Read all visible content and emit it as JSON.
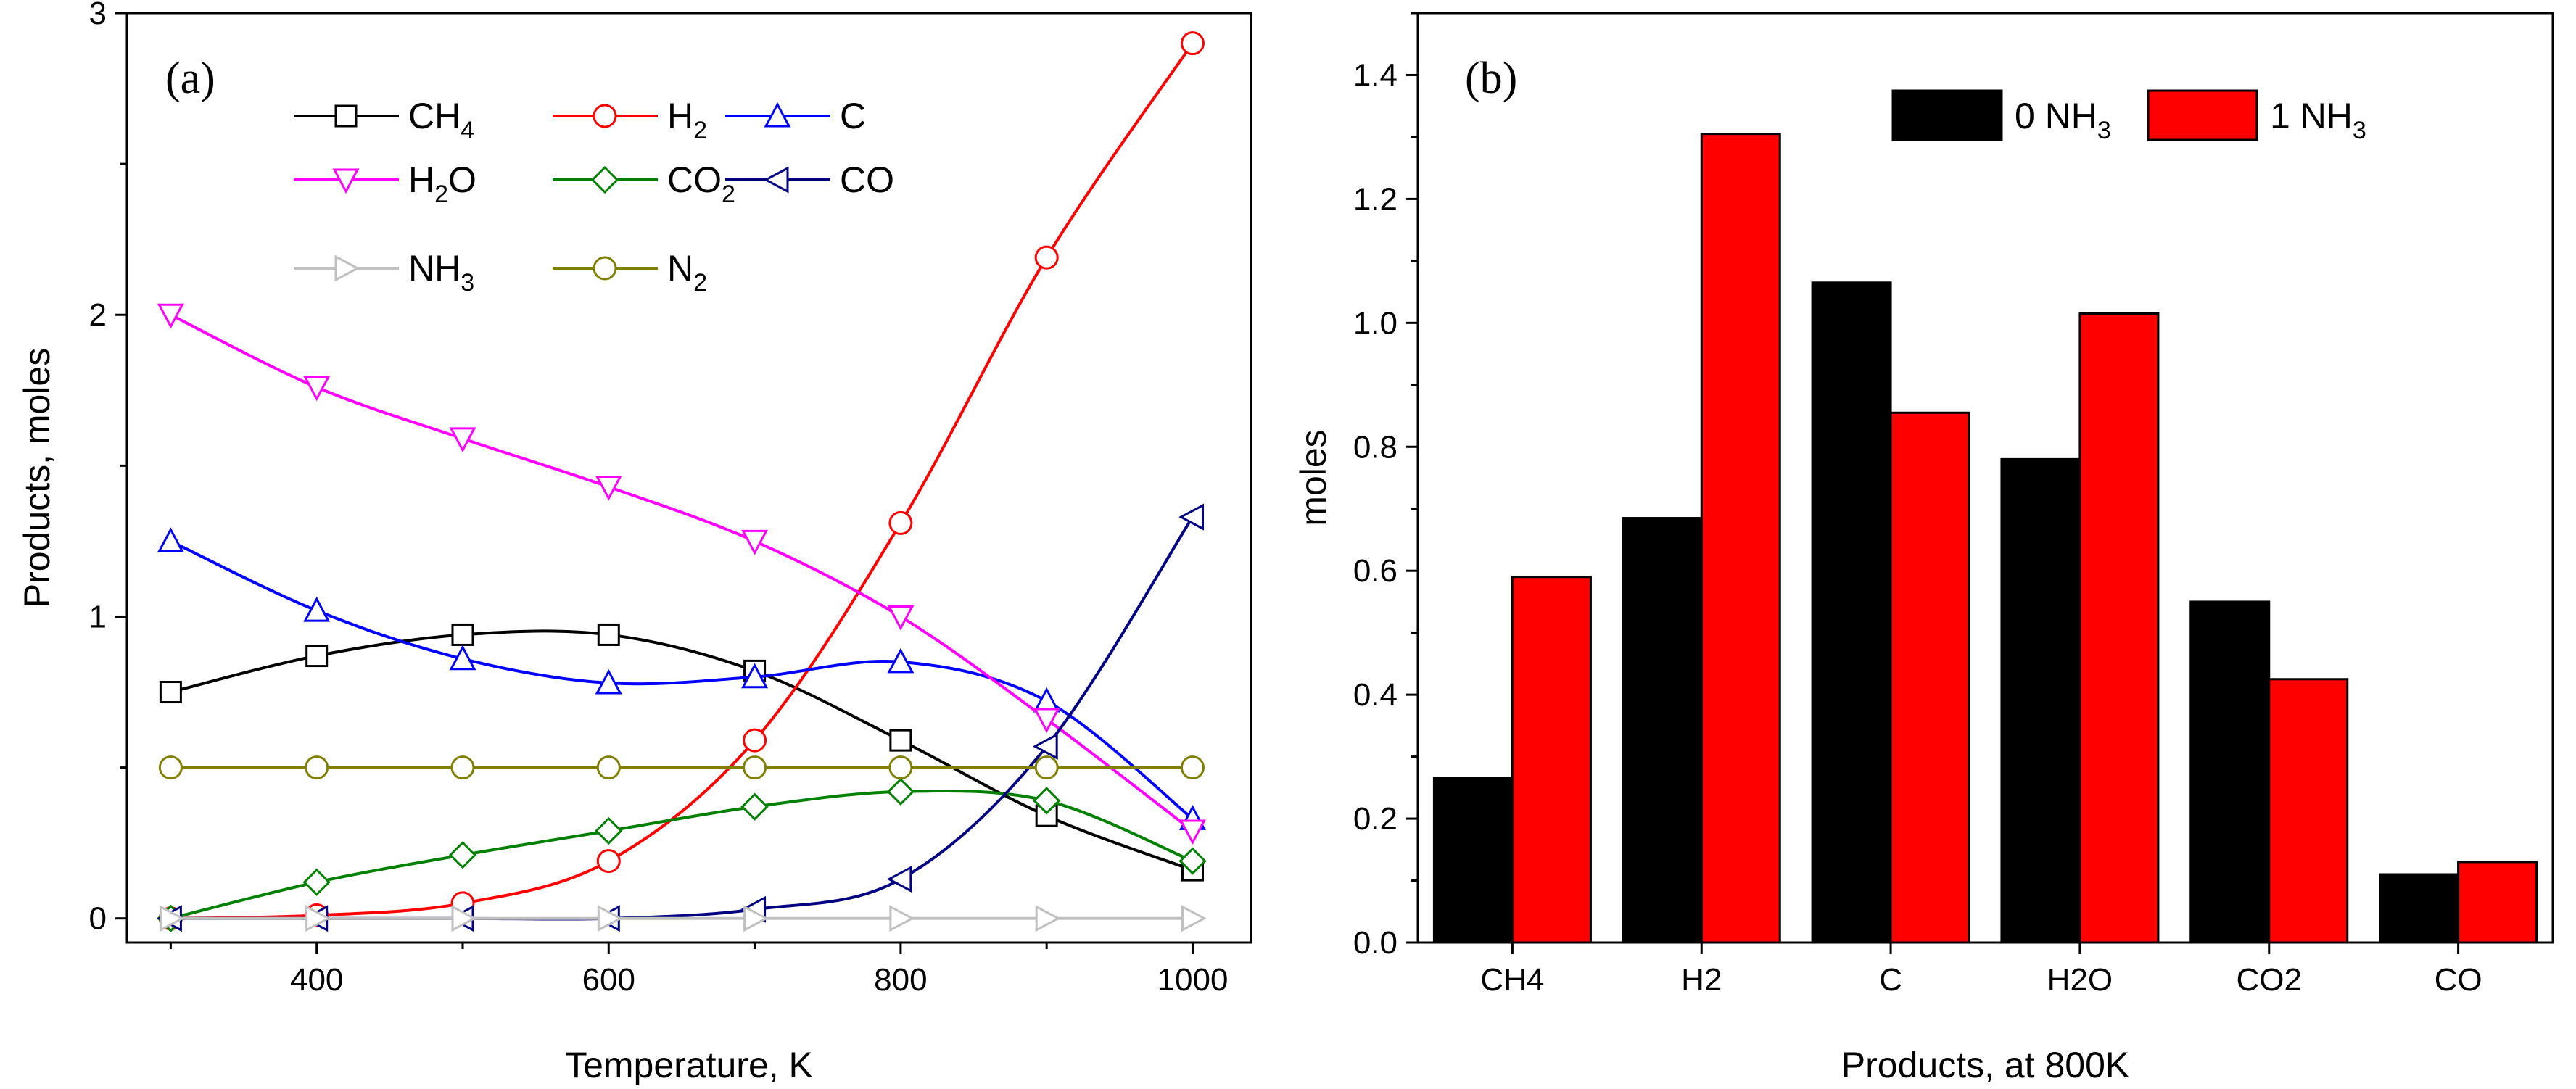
{
  "chart_data": [
    {
      "id": "a",
      "panel_label": "(a)",
      "type": "line",
      "xlabel": "Temperature, K",
      "ylabel": "Products, moles",
      "xlim": [
        270,
        1040
      ],
      "ylim": [
        -0.08,
        3
      ],
      "xticks": [
        400,
        600,
        800,
        1000
      ],
      "xtick_labels": [
        "400",
        "600",
        "800",
        "1000"
      ],
      "yticks": [
        0,
        1,
        2,
        3
      ],
      "ytick_labels": [
        "0",
        "1",
        "2",
        "3"
      ],
      "x": [
        300,
        400,
        500,
        600,
        700,
        800,
        900,
        1000
      ],
      "series": [
        {
          "key": "ch4",
          "name": "CH",
          "sub": "4",
          "marker": "square",
          "color": "#000000",
          "values": [
            0.75,
            0.87,
            0.94,
            0.94,
            0.82,
            0.59,
            0.34,
            0.16
          ]
        },
        {
          "key": "h2",
          "name": "H",
          "sub": "2",
          "marker": "circle",
          "color": "#ff0000",
          "values": [
            0.0,
            0.01,
            0.05,
            0.19,
            0.59,
            1.31,
            2.19,
            2.9
          ]
        },
        {
          "key": "c",
          "name": "C",
          "sub": "",
          "marker": "triangle-up",
          "color": "#0000ff",
          "values": [
            1.25,
            1.02,
            0.86,
            0.78,
            0.8,
            0.85,
            0.72,
            0.33
          ]
        },
        {
          "key": "h2o",
          "name": "H",
          "sub": "2",
          "suffix": "O",
          "marker": "triangle-down",
          "color": "#ff00ff",
          "values": [
            2.0,
            1.76,
            1.59,
            1.43,
            1.25,
            1.0,
            0.66,
            0.29
          ]
        },
        {
          "key": "co2",
          "name": "CO",
          "sub": "2",
          "marker": "diamond",
          "color": "#008000",
          "values": [
            0.0,
            0.12,
            0.21,
            0.29,
            0.37,
            0.42,
            0.39,
            0.19
          ]
        },
        {
          "key": "co",
          "name": "CO",
          "sub": "",
          "marker": "triangle-left",
          "color": "#000080",
          "values": [
            0.0,
            0.0,
            0.0,
            0.0,
            0.03,
            0.13,
            0.57,
            1.33
          ]
        },
        {
          "key": "nh3",
          "name": "NH",
          "sub": "3",
          "marker": "triangle-right",
          "color": "#c0c0c0",
          "values": [
            0.0,
            0.0,
            0.0,
            0.0,
            0.0,
            0.0,
            0.0,
            0.0
          ]
        },
        {
          "key": "n2",
          "name": "N",
          "sub": "2",
          "marker": "circle",
          "color": "#808000",
          "values": [
            0.5,
            0.5,
            0.5,
            0.5,
            0.5,
            0.5,
            0.5,
            0.5
          ]
        }
      ],
      "legend_location": "top-left"
    },
    {
      "id": "b",
      "panel_label": "(b)",
      "type": "bar",
      "xlabel": "Products, at 800K",
      "ylabel": "moles",
      "ylim": [
        0.0,
        1.5
      ],
      "yticks": [
        0.0,
        0.2,
        0.4,
        0.6,
        0.8,
        1.0,
        1.2,
        1.4
      ],
      "ytick_labels": [
        "0.0",
        "0.2",
        "0.4",
        "0.6",
        "0.8",
        "1.0",
        "1.2",
        "1.4"
      ],
      "categories": [
        "CH4",
        "H2",
        "C",
        "H2O",
        "CO2",
        "CO"
      ],
      "series": [
        {
          "key": "nh3_0",
          "name": "0 NH",
          "sub": "3",
          "color": "#000000",
          "values": [
            0.265,
            0.685,
            1.065,
            0.78,
            0.55,
            0.11
          ]
        },
        {
          "key": "nh3_1",
          "name": "1 NH",
          "sub": "3",
          "color": "#ff0000",
          "values": [
            0.59,
            1.305,
            0.855,
            1.015,
            0.425,
            0.13
          ]
        }
      ],
      "legend_location": "top-right"
    }
  ]
}
